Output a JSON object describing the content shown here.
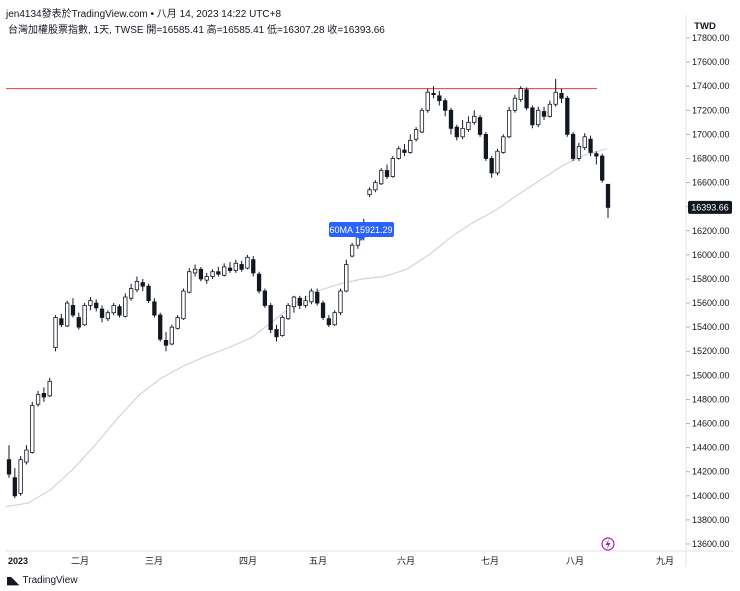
{
  "header": {
    "author_line": "jen4134發表於TradingView.com • 八月 14, 2023 14:22 UTC+8"
  },
  "symbol": {
    "line": "台灣加權股票指數, 1天, TWSE  開=16585.41  高=16585.41  低=16307.28  收=16393.66"
  },
  "currency": "TWD",
  "ma_badge": "60MA  15921.29",
  "last_price_label": "16393.66",
  "footer": {
    "brand": "TradingView"
  },
  "colors": {
    "up": "#ffffff",
    "down": "#131722",
    "wick": "#131722",
    "ma": "#d1d4dc",
    "resistance": "#f23645",
    "badge": "#2962ff",
    "last_price_bg": "#131722",
    "flash": "#9c27b0"
  },
  "chart_data": {
    "type": "candlestick",
    "y_axis_ticks": [
      "17800.00",
      "17600.00",
      "17400.00",
      "17200.00",
      "17000.00",
      "16800.00",
      "16600.00",
      "16400.00",
      "16200.00",
      "16000.00",
      "15800.00",
      "15600.00",
      "15400.00",
      "15200.00",
      "15000.00",
      "14800.00",
      "14600.00",
      "14400.00",
      "14200.00",
      "14000.00",
      "13800.00",
      "13600.00"
    ],
    "ylim": [
      13560,
      17850
    ],
    "x_axis_labels": [
      "2023",
      "二月",
      "三月",
      "四月",
      "五月",
      "六月",
      "七月",
      "八月",
      "九月"
    ],
    "resistance_level": 17380,
    "last_close": 16393.66,
    "ma_60": [
      13910,
      13940,
      14050,
      14220,
      14420,
      14640,
      14840,
      14980,
      15080,
      15160,
      15230,
      15310,
      15450,
      15600,
      15700,
      15760,
      15800,
      15820,
      15880,
      16000,
      16150,
      16270,
      16370,
      16500,
      16620,
      16740,
      16830,
      16880
    ],
    "candles": [
      [
        14300,
        14180,
        14420,
        14150
      ],
      [
        14150,
        14000,
        14230,
        13980
      ],
      [
        14020,
        14300,
        14330,
        14000
      ],
      [
        14280,
        14380,
        14420,
        14260
      ],
      [
        14360,
        14750,
        14780,
        14350
      ],
      [
        14760,
        14840,
        14870,
        14740
      ],
      [
        14850,
        14820,
        14900,
        14780
      ],
      [
        14830,
        14950,
        14980,
        14820
      ],
      [
        15230,
        15480,
        15500,
        15200
      ],
      [
        15470,
        15420,
        15510,
        15400
      ],
      [
        15410,
        15600,
        15620,
        15400
      ],
      [
        15580,
        15500,
        15640,
        15480
      ],
      [
        15480,
        15400,
        15520,
        15380
      ],
      [
        15420,
        15580,
        15600,
        15410
      ],
      [
        15580,
        15620,
        15650,
        15540
      ],
      [
        15600,
        15560,
        15630,
        15530
      ],
      [
        15550,
        15480,
        15580,
        15440
      ],
      [
        15470,
        15520,
        15540,
        15450
      ],
      [
        15520,
        15580,
        15600,
        15500
      ],
      [
        15570,
        15500,
        15590,
        15480
      ],
      [
        15490,
        15650,
        15680,
        15480
      ],
      [
        15640,
        15720,
        15760,
        15620
      ],
      [
        15710,
        15780,
        15820,
        15690
      ],
      [
        15770,
        15740,
        15800,
        15700
      ],
      [
        15740,
        15620,
        15760,
        15600
      ],
      [
        15610,
        15500,
        15640,
        15480
      ],
      [
        15500,
        15300,
        15520,
        15280
      ],
      [
        15290,
        15250,
        15360,
        15200
      ],
      [
        15260,
        15400,
        15420,
        15250
      ],
      [
        15390,
        15480,
        15500,
        15380
      ],
      [
        15470,
        15700,
        15720,
        15460
      ],
      [
        15690,
        15860,
        15890,
        15680
      ],
      [
        15850,
        15880,
        15920,
        15820
      ],
      [
        15880,
        15800,
        15900,
        15780
      ],
      [
        15790,
        15820,
        15850,
        15760
      ],
      [
        15820,
        15860,
        15880,
        15800
      ],
      [
        15860,
        15840,
        15900,
        15820
      ],
      [
        15830,
        15900,
        15930,
        15820
      ],
      [
        15890,
        15870,
        15940,
        15850
      ],
      [
        15870,
        15930,
        15960,
        15850
      ],
      [
        15920,
        15880,
        15950,
        15860
      ],
      [
        15890,
        15980,
        16000,
        15880
      ],
      [
        15960,
        15850,
        15990,
        15820
      ],
      [
        15840,
        15700,
        15860,
        15680
      ],
      [
        15700,
        15580,
        15720,
        15560
      ],
      [
        15580,
        15380,
        15600,
        15350
      ],
      [
        15380,
        15320,
        15420,
        15280
      ],
      [
        15330,
        15480,
        15500,
        15320
      ],
      [
        15470,
        15580,
        15600,
        15460
      ],
      [
        15570,
        15650,
        15660,
        15520
      ],
      [
        15640,
        15580,
        15660,
        15550
      ],
      [
        15580,
        15620,
        15660,
        15560
      ],
      [
        15610,
        15700,
        15720,
        15590
      ],
      [
        15690,
        15600,
        15720,
        15580
      ],
      [
        15600,
        15480,
        15620,
        15460
      ],
      [
        15470,
        15420,
        15500,
        15400
      ],
      [
        15420,
        15520,
        15540,
        15410
      ],
      [
        15520,
        15700,
        15720,
        15500
      ],
      [
        15700,
        15920,
        15960,
        15690
      ],
      [
        15990,
        16080,
        16100,
        15980
      ],
      [
        16080,
        16150,
        16160,
        16050
      ],
      [
        16150,
        16230,
        16300,
        16120
      ],
      [
        16500,
        16540,
        16560,
        16480
      ],
      [
        16540,
        16600,
        16620,
        16520
      ],
      [
        16590,
        16700,
        16720,
        16580
      ],
      [
        16700,
        16650,
        16750,
        16630
      ],
      [
        16650,
        16800,
        16820,
        16640
      ],
      [
        16800,
        16880,
        16900,
        16790
      ],
      [
        16870,
        16850,
        16920,
        16820
      ],
      [
        16850,
        16950,
        17000,
        16840
      ],
      [
        16960,
        17040,
        17060,
        16940
      ],
      [
        17020,
        17200,
        17220,
        17010
      ],
      [
        17200,
        17350,
        17380,
        17180
      ],
      [
        17340,
        17330,
        17400,
        17300
      ],
      [
        17320,
        17280,
        17360,
        17240
      ],
      [
        17280,
        17200,
        17300,
        17150
      ],
      [
        17200,
        17050,
        17220,
        17000
      ],
      [
        17060,
        16980,
        17080,
        16950
      ],
      [
        16980,
        17050,
        17120,
        16960
      ],
      [
        17040,
        17100,
        17150,
        17020
      ],
      [
        17100,
        17150,
        17200,
        17080
      ],
      [
        17140,
        17000,
        17160,
        16980
      ],
      [
        17000,
        16800,
        17020,
        16780
      ],
      [
        16800,
        16680,
        16820,
        16640
      ],
      [
        16680,
        16860,
        16880,
        16660
      ],
      [
        16850,
        16980,
        17000,
        16840
      ],
      [
        16980,
        17200,
        17230,
        16970
      ],
      [
        17200,
        17300,
        17330,
        17180
      ],
      [
        17290,
        17380,
        17400,
        17270
      ],
      [
        17370,
        17220,
        17390,
        17200
      ],
      [
        17220,
        17080,
        17240,
        17050
      ],
      [
        17080,
        17200,
        17230,
        17060
      ],
      [
        17190,
        17150,
        17230,
        17120
      ],
      [
        17150,
        17250,
        17280,
        17140
      ],
      [
        17250,
        17350,
        17460,
        17230
      ],
      [
        17340,
        17300,
        17380,
        17260
      ],
      [
        17300,
        17000,
        17320,
        16980
      ],
      [
        17000,
        16800,
        17020,
        16780
      ],
      [
        16800,
        16900,
        16930,
        16780
      ],
      [
        16890,
        16980,
        17010,
        16870
      ],
      [
        16960,
        16850,
        16990,
        16820
      ],
      [
        16840,
        16820,
        16860,
        16750
      ],
      [
        16820,
        16620,
        16840,
        16600
      ],
      [
        16585.41,
        16393.66,
        16585.41,
        16307.28
      ]
    ]
  }
}
